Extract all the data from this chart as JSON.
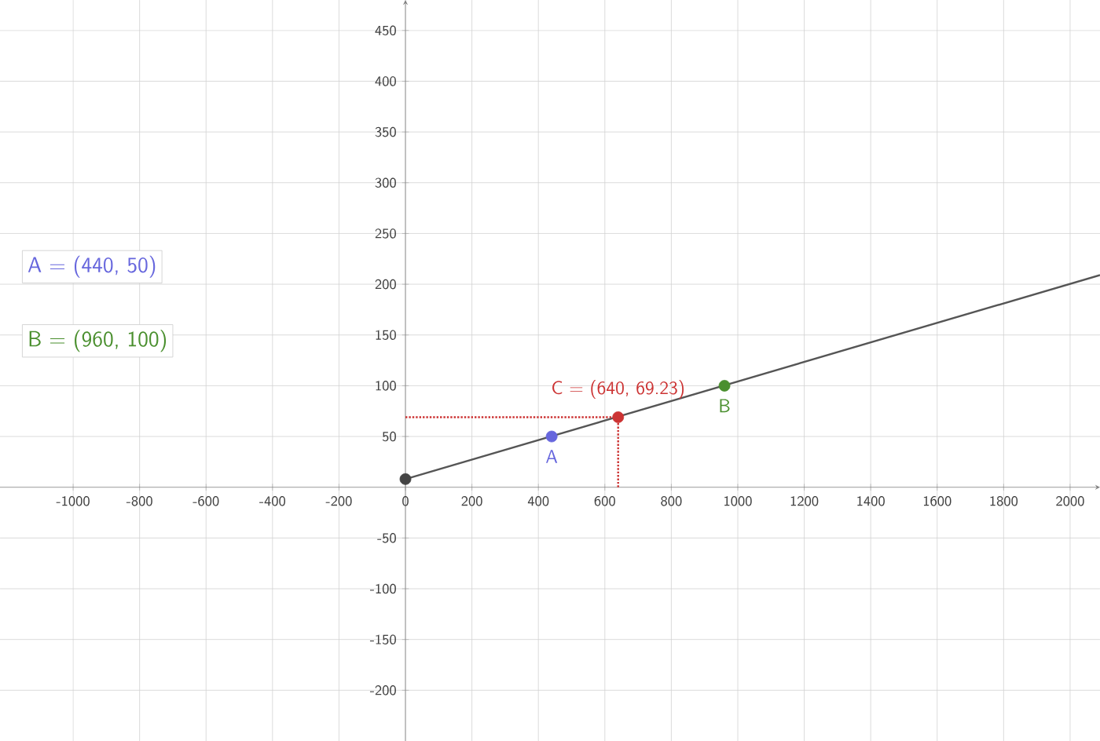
{
  "chart_data": {
    "type": "line",
    "series": [
      {
        "color": "#555555",
        "x": [
          0,
          2090
        ],
        "values": [
          8,
          209
        ],
        "marker": "none",
        "line_style": "solid"
      },
      {
        "color": "#cc3333",
        "x": [
          0,
          640
        ],
        "values": [
          69,
          69
        ],
        "marker": "none",
        "line_style": "dotted"
      },
      {
        "color": "#cc3333",
        "x": [
          640,
          640
        ],
        "values": [
          0,
          69
        ],
        "marker": "none",
        "line_style": "dotted"
      },
      {
        "type": "scatter",
        "color": "#444444",
        "x": [
          0
        ],
        "values": [
          8
        ],
        "marker": "circle"
      },
      {
        "type": "scatter",
        "color": "#6666dd",
        "x": [
          440
        ],
        "values": [
          50
        ],
        "marker": "circle"
      },
      {
        "type": "scatter",
        "color": "#4a8f2e",
        "x": [
          960
        ],
        "values": [
          100
        ],
        "marker": "circle"
      },
      {
        "type": "scatter",
        "color": "#cc3333",
        "x": [
          640
        ],
        "values": [
          69
        ],
        "marker": "circle"
      }
    ],
    "xlim": [
      -1220,
      2090
    ],
    "ylim": [
      -250,
      480
    ],
    "xticks": [
      -1000,
      -800,
      -600,
      -400,
      -200,
      0,
      200,
      400,
      600,
      800,
      1000,
      1200,
      1400,
      1600,
      1800,
      2000
    ],
    "yticks": [
      -200,
      -150,
      -100,
      -50,
      50,
      100,
      150,
      200,
      250,
      300,
      350,
      400,
      450
    ],
    "grid": true,
    "annotations": [
      "A = (440, 50)",
      "B = (960, 100)",
      {
        "text": "A",
        "x": 440,
        "y": 50
      },
      {
        "text": "B",
        "x": 960,
        "y": 100
      },
      {
        "text": "C = (640, 69.23)",
        "x": 640,
        "y": 69.23
      }
    ]
  }
}
